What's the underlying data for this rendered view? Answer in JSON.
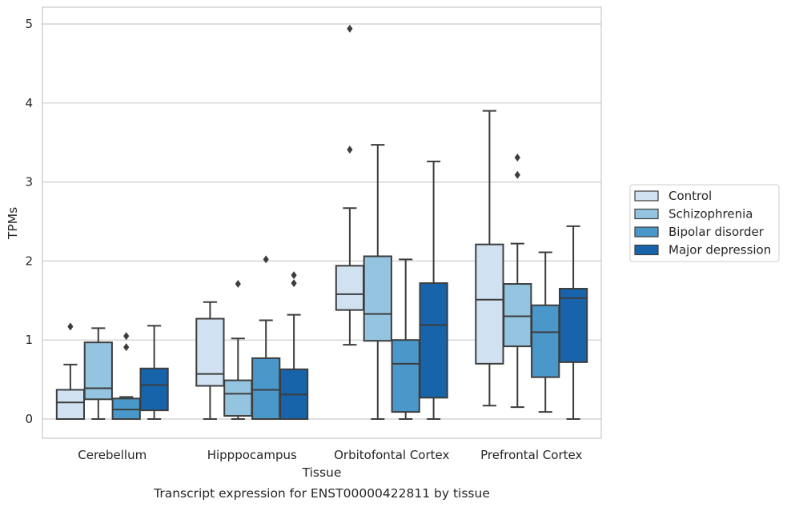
{
  "chart_data": {
    "type": "box",
    "title": "",
    "caption": "Transcript expression for ENST00000422811 by tissue",
    "xlabel": "Tissue",
    "ylabel": "TPMs",
    "ylim": [
      -0.24,
      5.2
    ],
    "yticks": [
      0,
      1,
      2,
      3,
      4,
      5
    ],
    "grid": "horizontal",
    "legend_position": "right",
    "categories": [
      "Cerebellum",
      "Hipppocampus",
      "Orbitofontal Cortex",
      "Prefrontal Cortex"
    ],
    "series": [
      {
        "name": "Control",
        "color": "#d0e1f2",
        "boxes": [
          {
            "whislo": 0.0,
            "q1": 0.0,
            "med": 0.21,
            "q3": 0.37,
            "whishi": 0.69,
            "fliers": [
              1.17
            ]
          },
          {
            "whislo": 0.0,
            "q1": 0.42,
            "med": 0.57,
            "q3": 1.27,
            "whishi": 1.48,
            "fliers": []
          },
          {
            "whislo": 0.94,
            "q1": 1.38,
            "med": 1.58,
            "q3": 1.94,
            "whishi": 2.67,
            "fliers": [
              3.41,
              4.94
            ]
          },
          {
            "whislo": 0.17,
            "q1": 0.7,
            "med": 1.51,
            "q3": 2.21,
            "whishi": 3.9,
            "fliers": []
          }
        ]
      },
      {
        "name": "Schizophrenia",
        "color": "#94c4df",
        "boxes": [
          {
            "whislo": 0.0,
            "q1": 0.25,
            "med": 0.39,
            "q3": 0.97,
            "whishi": 1.15,
            "fliers": []
          },
          {
            "whislo": 0.0,
            "q1": 0.04,
            "med": 0.32,
            "q3": 0.49,
            "whishi": 1.02,
            "fliers": [
              1.71
            ]
          },
          {
            "whislo": 0.0,
            "q1": 0.99,
            "med": 1.33,
            "q3": 2.06,
            "whishi": 3.47,
            "fliers": []
          },
          {
            "whislo": 0.15,
            "q1": 0.92,
            "med": 1.3,
            "q3": 1.71,
            "whishi": 2.22,
            "fliers": [
              3.09,
              3.31
            ]
          }
        ]
      },
      {
        "name": "Bipolar disorder",
        "color": "#4a98c9",
        "boxes": [
          {
            "whislo": 0.0,
            "q1": 0.0,
            "med": 0.12,
            "q3": 0.26,
            "whishi": 0.28,
            "fliers": [
              0.91,
              1.05
            ]
          },
          {
            "whislo": 0.0,
            "q1": 0.0,
            "med": 0.37,
            "q3": 0.77,
            "whishi": 1.25,
            "fliers": [
              2.02
            ]
          },
          {
            "whislo": 0.0,
            "q1": 0.09,
            "med": 0.7,
            "q3": 1.0,
            "whishi": 2.02,
            "fliers": []
          },
          {
            "whislo": 0.09,
            "q1": 0.53,
            "med": 1.1,
            "q3": 1.44,
            "whishi": 2.11,
            "fliers": []
          }
        ]
      },
      {
        "name": "Major depression",
        "color": "#1764ab",
        "boxes": [
          {
            "whislo": 0.0,
            "q1": 0.11,
            "med": 0.43,
            "q3": 0.64,
            "whishi": 1.18,
            "fliers": []
          },
          {
            "whislo": 0.0,
            "q1": 0.0,
            "med": 0.31,
            "q3": 0.63,
            "whishi": 1.32,
            "fliers": [
              1.72,
              1.82
            ]
          },
          {
            "whislo": 0.0,
            "q1": 0.27,
            "med": 1.19,
            "q3": 1.72,
            "whishi": 3.26,
            "fliers": []
          },
          {
            "whislo": 0.0,
            "q1": 0.72,
            "med": 1.53,
            "q3": 1.65,
            "whishi": 2.44,
            "fliers": []
          }
        ]
      }
    ]
  }
}
